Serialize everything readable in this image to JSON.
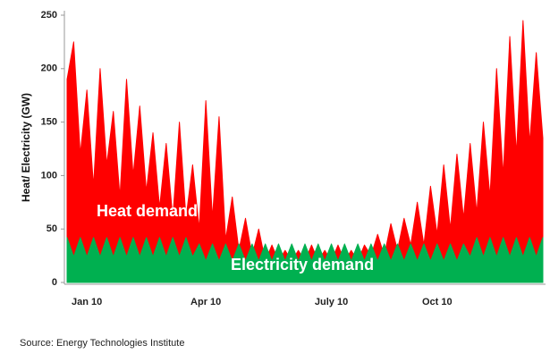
{
  "chart_data": {
    "type": "area",
    "y_label": "Heat/ Electricity (GW)",
    "categories": [
      null,
      null,
      null,
      "Jan 10",
      null,
      null,
      null,
      null,
      null,
      null,
      null,
      null,
      null,
      null,
      null,
      null,
      null,
      null,
      null,
      null,
      null,
      "Apr 10",
      null,
      null,
      null,
      null,
      null,
      null,
      null,
      null,
      null,
      null,
      null,
      null,
      null,
      null,
      null,
      null,
      null,
      null,
      "July 10",
      null,
      null,
      null,
      null,
      null,
      null,
      null,
      null,
      null,
      null,
      null,
      null,
      null,
      null,
      null,
      "Oct 10",
      null,
      null,
      null,
      null,
      null,
      null,
      null,
      null,
      null,
      null,
      null,
      null,
      null,
      null,
      null,
      null
    ],
    "series": [
      {
        "name": "Heat demand",
        "color": "#ff0000",
        "values": [
          190,
          225,
          120,
          180,
          90,
          200,
          110,
          160,
          80,
          190,
          100,
          165,
          85,
          140,
          70,
          130,
          60,
          150,
          60,
          110,
          50,
          170,
          60,
          155,
          40,
          80,
          30,
          60,
          25,
          50,
          20,
          35,
          20,
          30,
          20,
          30,
          20,
          35,
          20,
          30,
          20,
          35,
          20,
          30,
          20,
          35,
          25,
          45,
          25,
          55,
          30,
          60,
          35,
          75,
          35,
          90,
          45,
          110,
          50,
          120,
          60,
          130,
          65,
          150,
          80,
          200,
          100,
          230,
          120,
          245,
          130,
          215,
          135
        ]
      },
      {
        "name": "Electricity demand",
        "color": "#00b050",
        "values": [
          42,
          24,
          42,
          24,
          42,
          24,
          42,
          24,
          42,
          24,
          42,
          24,
          42,
          24,
          42,
          24,
          42,
          24,
          42,
          24,
          36,
          20,
          36,
          20,
          36,
          20,
          36,
          20,
          36,
          20,
          36,
          20,
          36,
          20,
          36,
          20,
          36,
          20,
          36,
          20,
          36,
          20,
          36,
          20,
          36,
          20,
          36,
          20,
          36,
          20,
          36,
          20,
          36,
          20,
          36,
          20,
          36,
          20,
          36,
          20,
          36,
          24,
          42,
          24,
          42,
          24,
          42,
          24,
          42,
          24,
          42,
          24,
          42
        ]
      }
    ],
    "ylim": [
      0,
      250
    ],
    "yticks": [
      0,
      50,
      100,
      150,
      200,
      250
    ],
    "annotations": [
      "Heat demand",
      "Electricity demand"
    ],
    "source": "Source: Energy Technologies Institute"
  }
}
